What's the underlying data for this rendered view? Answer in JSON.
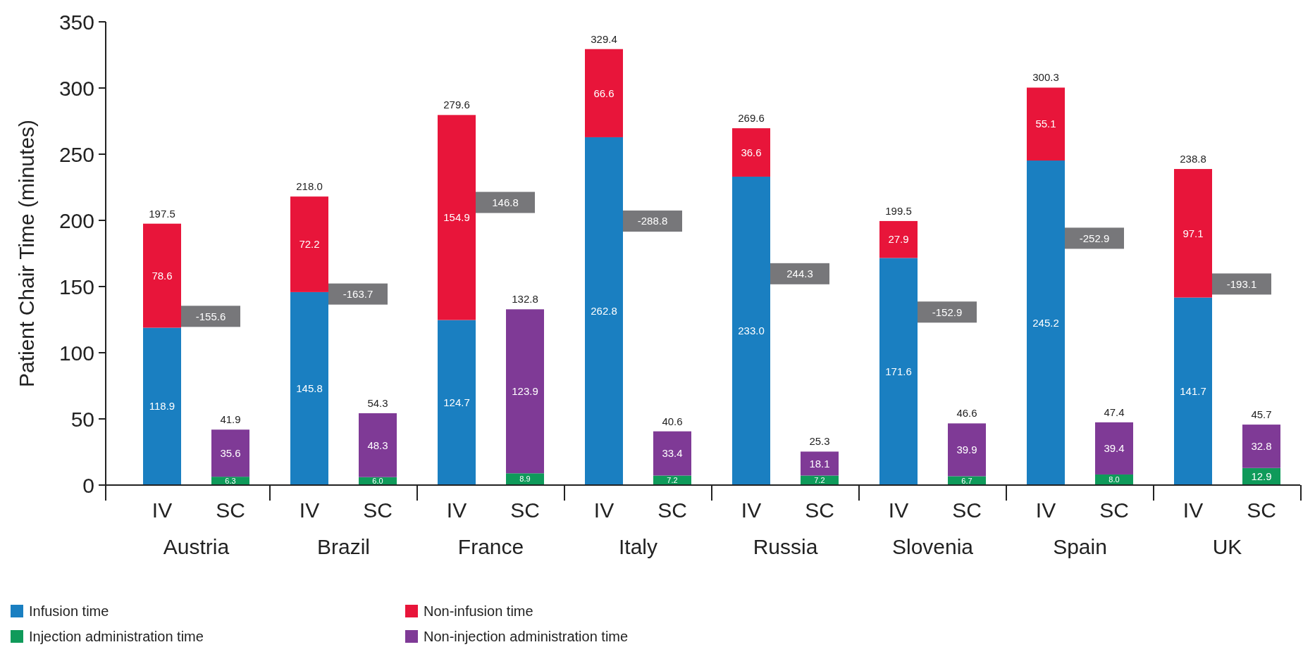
{
  "chart_data": {
    "type": "bar",
    "stacked": true,
    "ylabel": "Patient Chair Time (minutes)",
    "categories": [
      "IV",
      "SC",
      "IV",
      "SC",
      "IV",
      "SC",
      "IV",
      "SC",
      "IV",
      "SC",
      "IV",
      "SC",
      "IV",
      "SC",
      "IV",
      "SC"
    ],
    "series": [
      {
        "name": "Infusion time",
        "color": "#1a7fc1",
        "values": [
          118.9,
          null,
          145.8,
          null,
          124.7,
          null,
          262.8,
          null,
          233.0,
          null,
          171.6,
          null,
          245.2,
          null,
          141.7,
          null
        ],
        "value_labels": [
          "118.9",
          null,
          "145.8",
          null,
          "124.7",
          null,
          "262.8",
          null,
          "233.0",
          null,
          "171.6",
          null,
          "245.2",
          null,
          "141.7",
          null
        ]
      },
      {
        "name": "Non-infusion time",
        "color": "#e8153a",
        "values": [
          78.6,
          null,
          72.2,
          null,
          154.9,
          null,
          66.6,
          null,
          36.6,
          null,
          27.9,
          null,
          55.1,
          null,
          97.1,
          null
        ],
        "value_labels": [
          "78.6",
          null,
          "72.2",
          null,
          "154.9",
          null,
          "66.6",
          null,
          "36.6",
          null,
          "27.9",
          null,
          "55.1",
          null,
          "97.1",
          null
        ]
      },
      {
        "name": "Injection administration time",
        "color": "#0f9a5a",
        "values": [
          null,
          6.3,
          null,
          6.0,
          null,
          8.9,
          null,
          7.2,
          null,
          7.2,
          null,
          6.7,
          null,
          8.0,
          null,
          12.9
        ],
        "value_labels": [
          null,
          "6.3",
          null,
          "6.0",
          null,
          "8.9",
          null,
          "7.2",
          null,
          "7.2",
          null,
          "6.7",
          null,
          "8.0",
          null,
          "12.9"
        ]
      },
      {
        "name": "Non-injection administration time",
        "color": "#7f3a96",
        "values": [
          null,
          35.6,
          null,
          48.3,
          null,
          123.9,
          null,
          33.4,
          null,
          18.1,
          null,
          39.9,
          null,
          39.4,
          null,
          32.8
        ],
        "value_labels": [
          null,
          "35.6",
          null,
          "48.3",
          null,
          "123.9",
          null,
          "33.4",
          null,
          "18.1",
          null,
          "39.9",
          null,
          "39.4",
          null,
          "32.8"
        ]
      }
    ],
    "totals": [
      "197.5",
      "41.9",
      "218.0",
      "54.3",
      "279.6",
      "132.8",
      "329.4",
      "40.6",
      "269.6",
      "25.3",
      "199.5",
      "46.6",
      "300.3",
      "47.4",
      "238.8",
      "45.7"
    ],
    "annotations": [
      "Austria",
      "Brazil",
      "France",
      "Italy",
      "Russia",
      "Slovenia",
      "Spain",
      "UK",
      "-155.6",
      "-163.7",
      "146.8",
      "-288.8",
      "244.3",
      "-152.9",
      "-252.9",
      "-193.1"
    ],
    "ylim": [
      0,
      350
    ],
    "yticks": [
      0,
      50,
      100,
      150,
      200,
      250,
      300,
      350
    ],
    "grid": false,
    "legend": "bottom"
  }
}
